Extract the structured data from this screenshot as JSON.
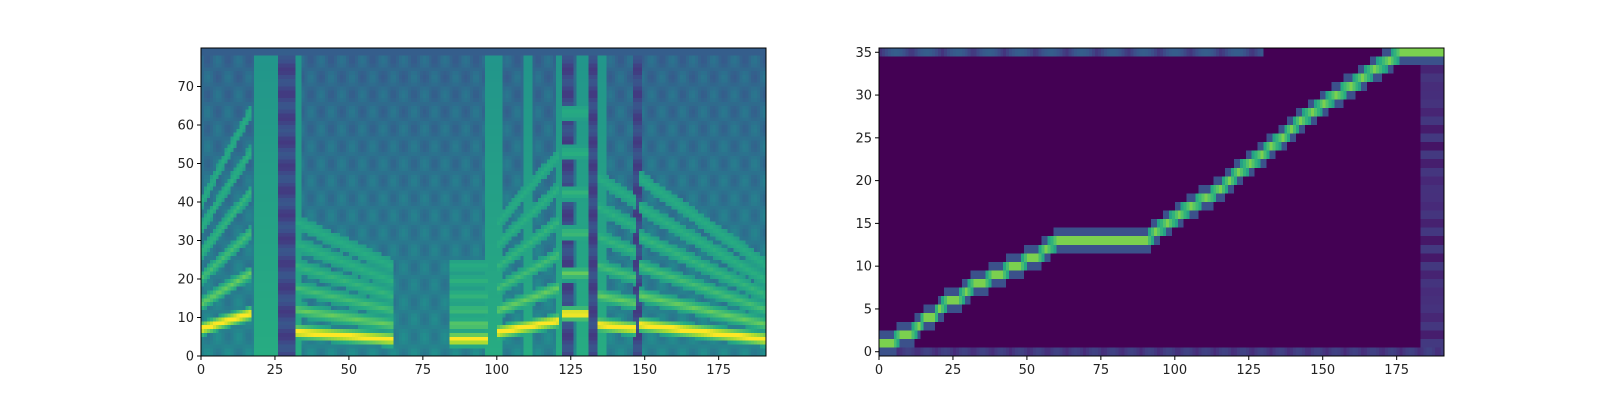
{
  "colors": {
    "background": "#ffffff",
    "axis": "#000000",
    "colormap": [
      "#440154",
      "#472c7a",
      "#3b518b",
      "#2c718e",
      "#21908d",
      "#27ad81",
      "#5cc863",
      "#aadc32",
      "#fde725"
    ]
  },
  "chart_data": [
    {
      "type": "heatmap",
      "colormap": "viridis",
      "title": "",
      "xlabel": "",
      "ylabel": "",
      "xlim": [
        0,
        191
      ],
      "ylim": [
        0,
        80
      ],
      "xticks": [
        0,
        25,
        50,
        75,
        100,
        125,
        150,
        175
      ],
      "yticks": [
        0,
        10,
        20,
        30,
        40,
        50,
        60,
        70
      ],
      "xtick_labels": [
        "0",
        "25",
        "50",
        "75",
        "100",
        "125",
        "150",
        "175"
      ],
      "ytick_labels": [
        "0",
        "10",
        "20",
        "30",
        "40",
        "50",
        "60",
        "70"
      ],
      "grid": false,
      "bright_vertical_bands_x": [
        [
          18,
          25
        ],
        [
          32,
          33
        ],
        [
          96,
          101
        ],
        [
          109,
          111
        ],
        [
          120,
          121
        ],
        [
          127,
          130
        ],
        [
          134,
          136
        ]
      ],
      "dark_gap_x": [
        [
          26,
          31
        ],
        [
          121,
          125
        ],
        [
          131,
          134
        ],
        [
          146,
          148
        ]
      ],
      "harmonic_segments": [
        {
          "x": [
            0,
            16
          ],
          "base_y": 7,
          "end_y": 11
        },
        {
          "x": [
            32,
            64
          ],
          "base_y": 6,
          "end_y": 4
        },
        {
          "x": [
            84,
            96
          ],
          "base_y": 4,
          "end_y": 4
        },
        {
          "x": [
            100,
            120
          ],
          "base_y": 6,
          "end_y": 9
        },
        {
          "x": [
            122,
            130
          ],
          "base_y": 11,
          "end_y": 11
        },
        {
          "x": [
            134,
            146
          ],
          "base_y": 8,
          "end_y": 7
        },
        {
          "x": [
            148,
            191
          ],
          "base_y": 8,
          "end_y": 4
        }
      ]
    },
    {
      "type": "heatmap",
      "colormap": "viridis",
      "title": "",
      "xlabel": "",
      "ylabel": "",
      "xlim": [
        0,
        191
      ],
      "ylim": [
        0,
        36
      ],
      "xticks": [
        0,
        25,
        50,
        75,
        100,
        125,
        150,
        175
      ],
      "yticks": [
        0,
        5,
        10,
        15,
        20,
        25,
        30,
        35
      ],
      "xtick_labels": [
        "0",
        "25",
        "50",
        "75",
        "100",
        "125",
        "150",
        "175"
      ],
      "ytick_labels": [
        "0",
        "5",
        "10",
        "15",
        "20",
        "25",
        "30",
        "35"
      ],
      "grid": false,
      "alignment_path": [
        [
          0,
          1
        ],
        [
          4,
          1
        ],
        [
          7,
          2
        ],
        [
          10,
          2
        ],
        [
          13,
          3
        ],
        [
          15,
          4
        ],
        [
          18,
          4
        ],
        [
          20,
          5
        ],
        [
          23,
          6
        ],
        [
          26,
          6
        ],
        [
          29,
          7
        ],
        [
          32,
          8
        ],
        [
          35,
          8
        ],
        [
          38,
          9
        ],
        [
          41,
          9
        ],
        [
          44,
          10
        ],
        [
          47,
          10
        ],
        [
          50,
          11
        ],
        [
          53,
          11
        ],
        [
          56,
          12
        ],
        [
          60,
          13
        ],
        [
          70,
          13
        ],
        [
          80,
          13
        ],
        [
          90,
          13
        ],
        [
          93,
          14
        ],
        [
          97,
          15
        ],
        [
          101,
          16
        ],
        [
          105,
          17
        ],
        [
          110,
          18
        ],
        [
          115,
          19
        ],
        [
          118,
          20
        ],
        [
          121,
          21
        ],
        [
          125,
          22
        ],
        [
          129,
          23
        ],
        [
          132,
          24
        ],
        [
          136,
          25
        ],
        [
          139,
          26
        ],
        [
          142,
          27
        ],
        [
          146,
          28
        ],
        [
          150,
          29
        ],
        [
          154,
          30
        ],
        [
          159,
          31
        ],
        [
          163,
          32
        ],
        [
          167,
          33
        ],
        [
          172,
          34
        ],
        [
          176,
          35
        ],
        [
          191,
          35
        ]
      ]
    }
  ]
}
